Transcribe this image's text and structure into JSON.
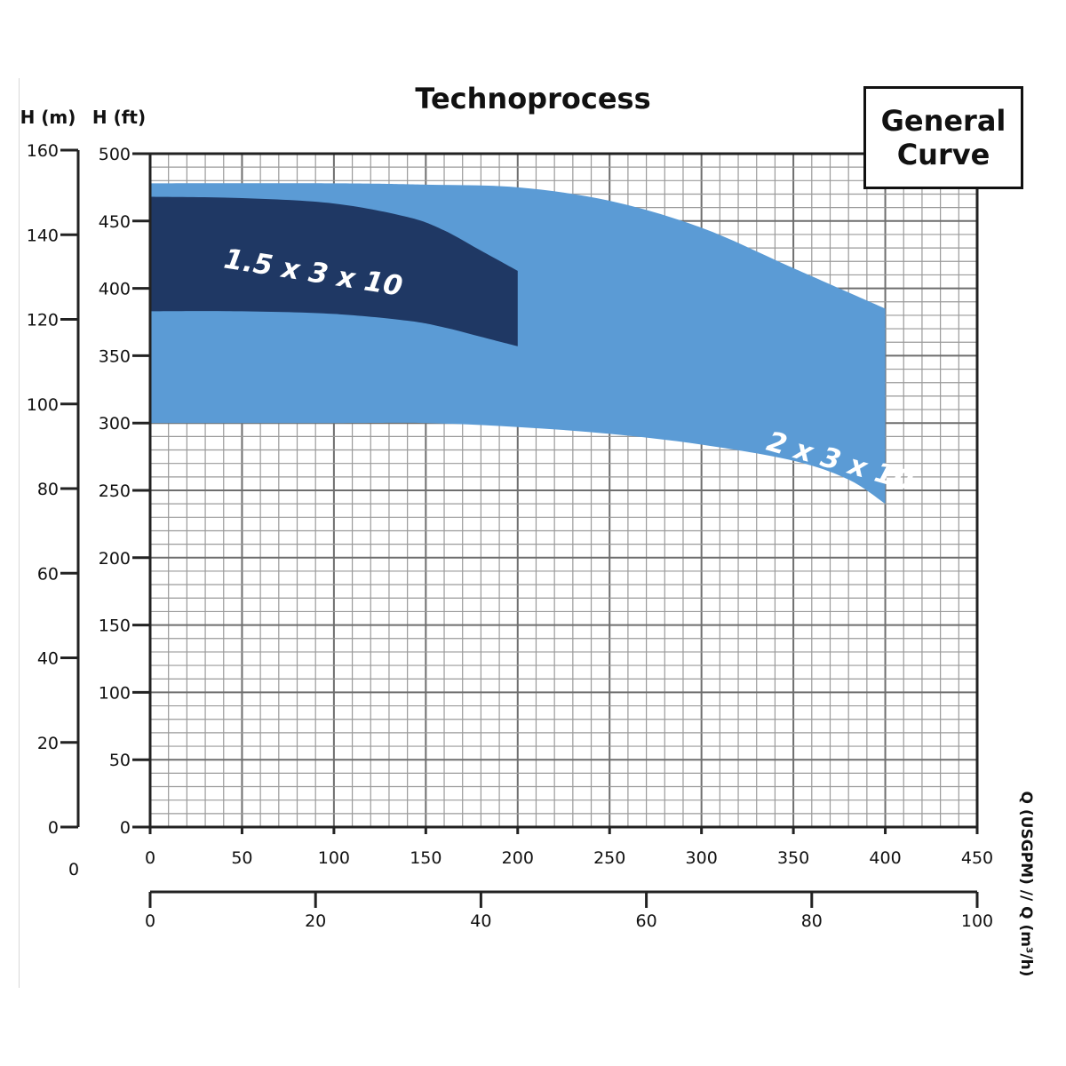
{
  "chart_data": {
    "type": "area",
    "title": "Technoprocess",
    "badge": "General\nCurve",
    "y_left_label": "H (m)",
    "y_left_ticks": [
      0,
      20,
      40,
      60,
      80,
      100,
      120,
      140,
      160
    ],
    "y_left_range": [
      0,
      160
    ],
    "y_ft_label": "H (ft)",
    "y_ft_ticks": [
      0,
      50,
      100,
      150,
      200,
      250,
      300,
      350,
      400,
      450,
      500
    ],
    "y_ft_range": [
      0,
      500
    ],
    "x_usgpm_ticks": [
      0,
      50,
      100,
      150,
      200,
      250,
      300,
      350,
      400,
      450
    ],
    "x_usgpm_range": [
      0,
      450
    ],
    "x_m3h_ticks": [
      0,
      20,
      40,
      60,
      80,
      100
    ],
    "x_m3h_range": [
      0,
      100
    ],
    "stray_label": "0",
    "x_axis_label": "Q (USGPM)  //  Q (m³/h)",
    "grid": true,
    "series": [
      {
        "name": "2 x 3 x 10",
        "color": "#5b9bd5",
        "upper": [
          [
            0,
            478
          ],
          [
            100,
            478
          ],
          [
            150,
            477
          ],
          [
            200,
            475
          ],
          [
            250,
            465
          ],
          [
            300,
            445
          ],
          [
            350,
            415
          ],
          [
            400,
            385
          ]
        ],
        "lower": [
          [
            0,
            300
          ],
          [
            100,
            300
          ],
          [
            150,
            300
          ],
          [
            200,
            297
          ],
          [
            250,
            292
          ],
          [
            300,
            284
          ],
          [
            350,
            272
          ],
          [
            380,
            258
          ],
          [
            400,
            240
          ]
        ]
      },
      {
        "name": "1.5 x 3 x 10",
        "color": "#1f3864",
        "upper": [
          [
            0,
            468
          ],
          [
            50,
            467
          ],
          [
            100,
            463
          ],
          [
            140,
            453
          ],
          [
            160,
            443
          ],
          [
            180,
            428
          ],
          [
            200,
            413
          ]
        ],
        "lower": [
          [
            0,
            383
          ],
          [
            50,
            383
          ],
          [
            100,
            381
          ],
          [
            140,
            376
          ],
          [
            160,
            371
          ],
          [
            180,
            364
          ],
          [
            200,
            357
          ]
        ]
      }
    ]
  }
}
